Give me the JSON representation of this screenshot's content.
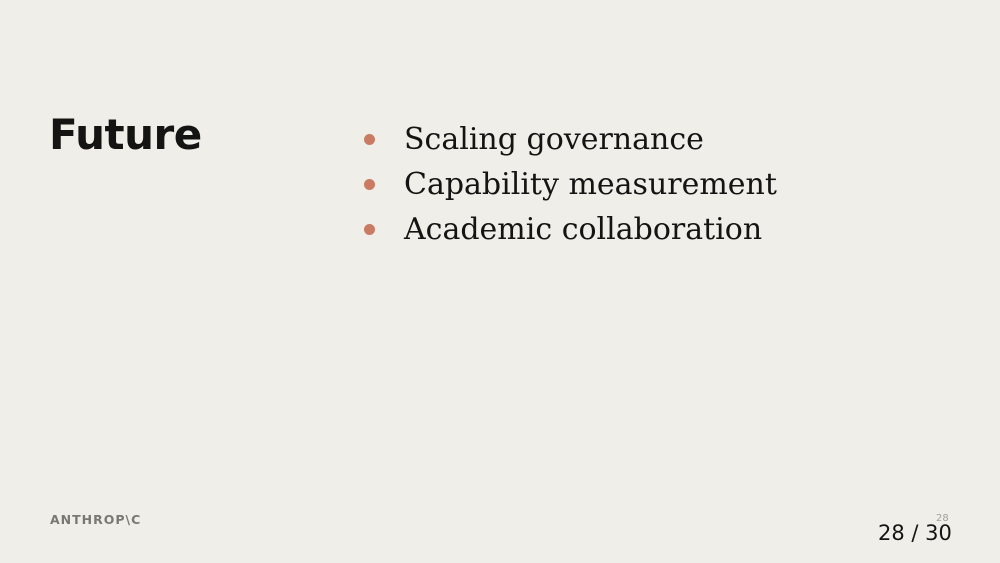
{
  "slide": {
    "title": "Future",
    "bullets": [
      "Scaling governance",
      "Capability measurement",
      "Academic collaboration"
    ],
    "brand": "ANTHROP\\C",
    "slide_number": "28"
  },
  "navigation": {
    "counter": "28 / 30"
  },
  "colors": {
    "background": "#f0eee9",
    "text": "#141413",
    "bullet_accent": "#c97b63",
    "muted": "#7a7873"
  }
}
